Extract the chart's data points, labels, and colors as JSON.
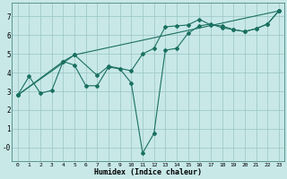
{
  "xlabel": "Humidex (Indice chaleur)",
  "bg_color": "#c8e8e8",
  "line_color": "#1a7060",
  "grid_color": "#99c4c4",
  "xlim": [
    -0.5,
    23.5
  ],
  "ylim": [
    -0.75,
    7.75
  ],
  "xticks": [
    0,
    1,
    2,
    3,
    4,
    5,
    6,
    7,
    8,
    9,
    10,
    11,
    12,
    13,
    14,
    15,
    16,
    17,
    18,
    19,
    20,
    21,
    22,
    23
  ],
  "yticks": [
    0,
    1,
    2,
    3,
    4,
    5,
    6,
    7
  ],
  "ytick_labels": [
    "-0",
    "1",
    "2",
    "3",
    "4",
    "5",
    "6",
    "7"
  ],
  "line1_x": [
    0,
    1,
    2,
    3,
    4,
    5,
    6,
    7,
    8,
    9,
    10,
    11,
    12,
    13,
    14,
    15,
    16,
    17,
    18,
    19,
    20,
    21,
    22,
    23
  ],
  "line1_y": [
    2.8,
    3.8,
    2.9,
    3.05,
    4.6,
    4.4,
    3.3,
    3.3,
    4.3,
    4.2,
    3.45,
    -0.3,
    0.75,
    5.2,
    5.3,
    6.1,
    6.5,
    6.6,
    6.4,
    6.3,
    6.2,
    6.35,
    6.6,
    7.3
  ],
  "line2_x": [
    0,
    4,
    5,
    7,
    8,
    10,
    11,
    12,
    13,
    14,
    15,
    16,
    17,
    18,
    19,
    20,
    21,
    22,
    23
  ],
  "line2_y": [
    2.8,
    4.6,
    4.95,
    3.85,
    4.35,
    4.1,
    5.0,
    5.3,
    6.45,
    6.5,
    6.55,
    6.85,
    6.55,
    6.5,
    6.3,
    6.2,
    6.35,
    6.6,
    7.3
  ],
  "line3_x": [
    0,
    5,
    23
  ],
  "line3_y": [
    2.8,
    4.95,
    7.3
  ]
}
